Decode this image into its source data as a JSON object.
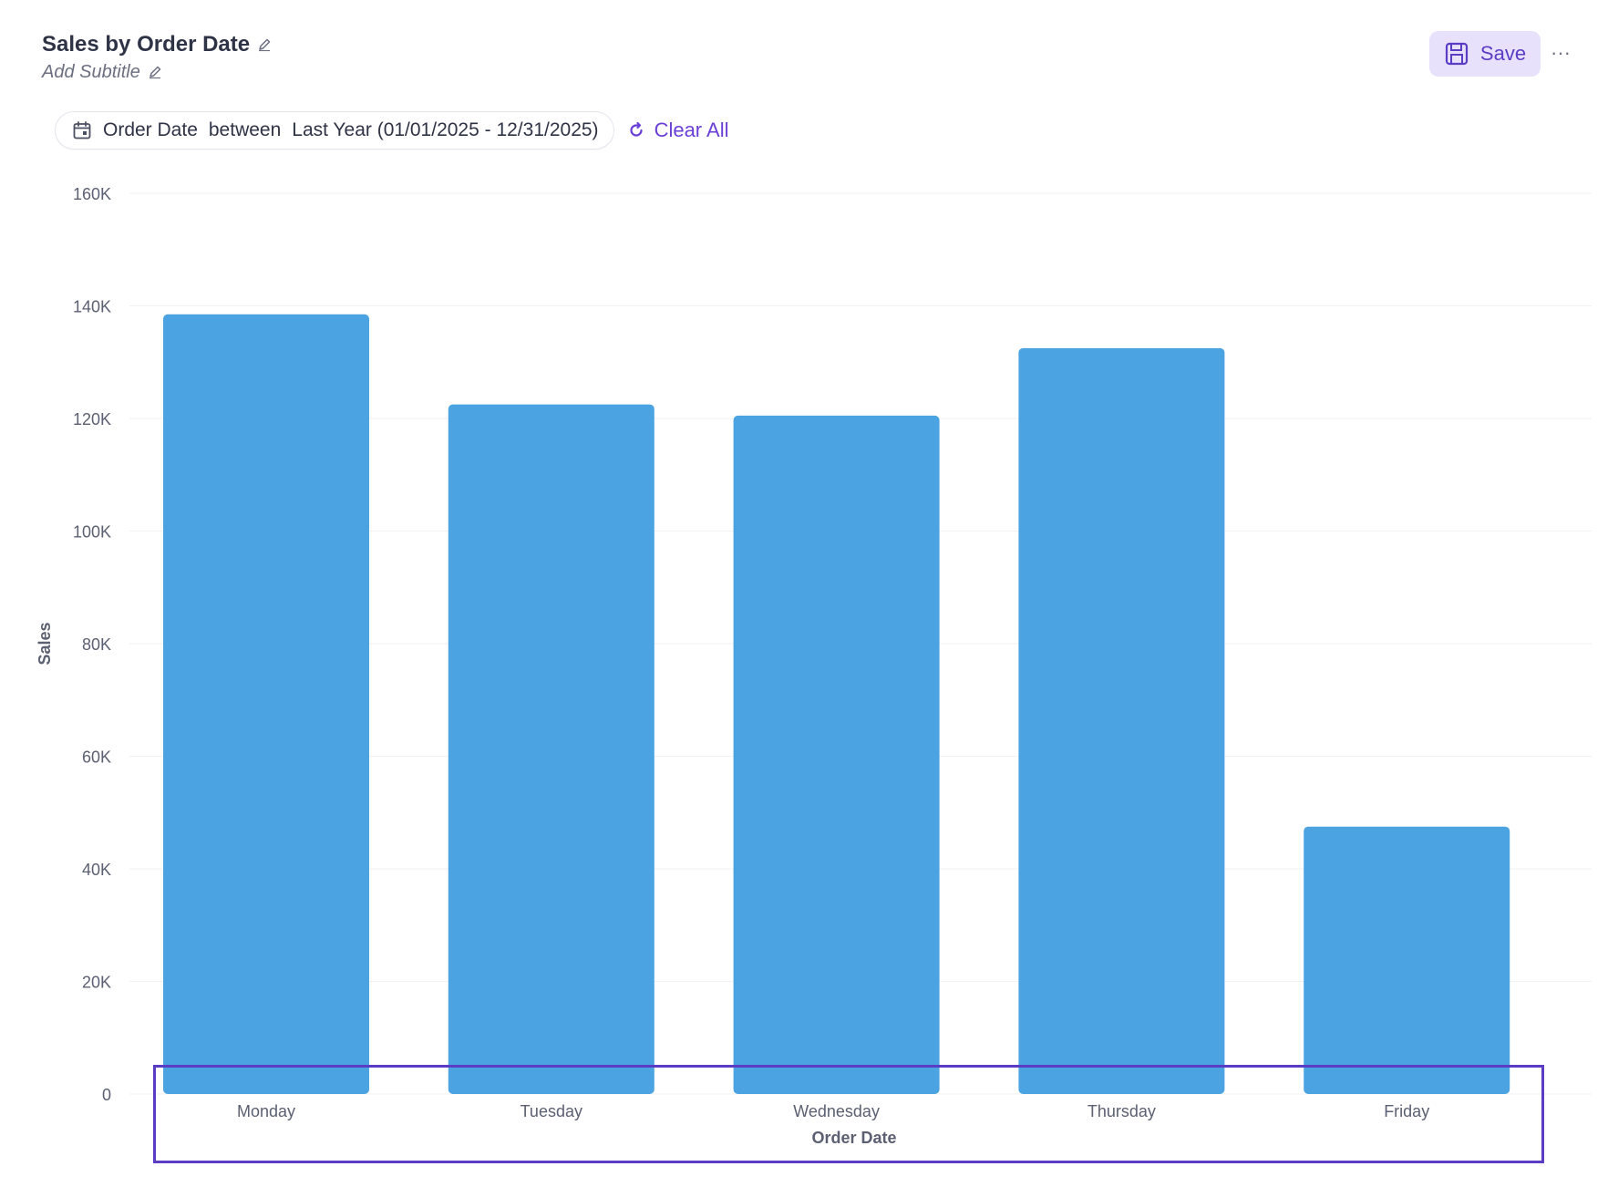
{
  "header": {
    "title": "Sales by Order Date",
    "subtitle_placeholder": "Add Subtitle"
  },
  "toolbar": {
    "save_label": "Save",
    "more_label": "···"
  },
  "filter": {
    "field": "Order Date",
    "operator": "between",
    "value": "Last Year (01/01/2025 - 12/31/2025)",
    "clear_all_label": "Clear All"
  },
  "colors": {
    "bar": "#4ca3e2",
    "accent": "#6a3fd6",
    "save_bg": "#e8e1fb",
    "text": "#2f3346",
    "muted": "#6b6f80"
  },
  "icons": {
    "title_edit": "pencil-icon",
    "subtitle_edit": "pencil-icon",
    "save": "floppy-disk-icon",
    "more": "ellipsis-icon",
    "filter": "calendar-icon",
    "clear_all": "refresh-icon"
  },
  "chart_data": {
    "type": "bar",
    "categories": [
      "Monday",
      "Tuesday",
      "Wednesday",
      "Thursday",
      "Friday"
    ],
    "values": [
      138500,
      122500,
      120500,
      132500,
      47500
    ],
    "ylim": [
      0,
      160000
    ],
    "yticks": [
      0,
      20000,
      40000,
      60000,
      80000,
      100000,
      120000,
      140000,
      160000
    ],
    "ytick_labels": [
      "0",
      "20K",
      "40K",
      "60K",
      "80K",
      "100K",
      "120K",
      "140K",
      "160K"
    ],
    "xlabel": "Order Date",
    "ylabel": "Sales",
    "legend": "none",
    "grid": true
  }
}
